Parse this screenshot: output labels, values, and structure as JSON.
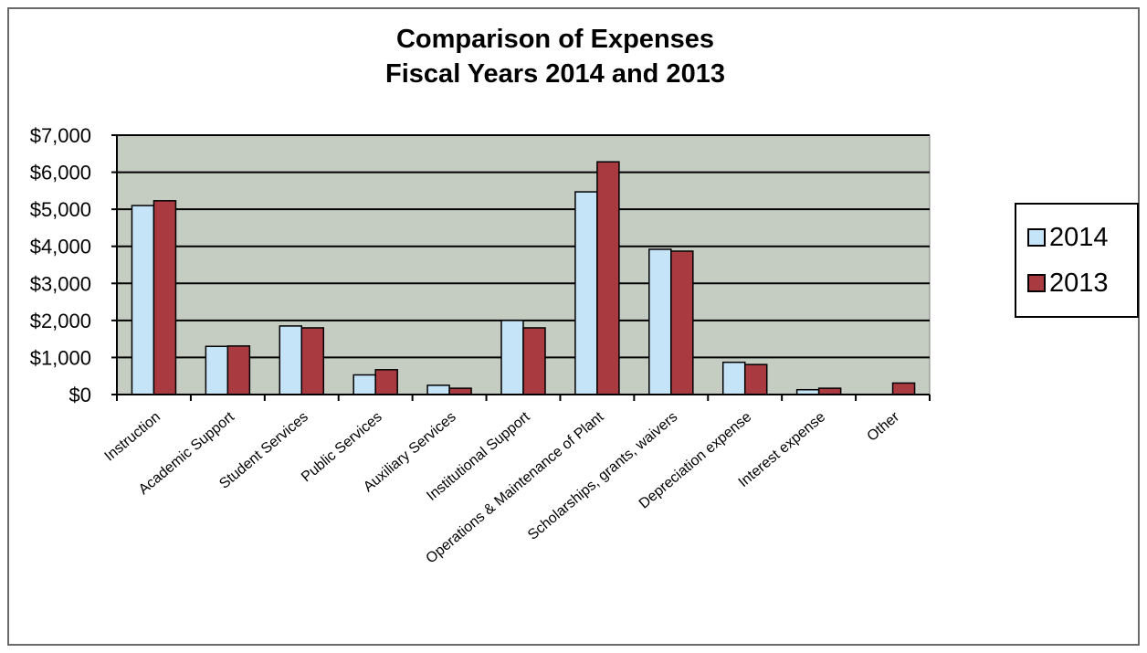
{
  "chart_data": {
    "type": "bar",
    "title": [
      "Comparison of Expenses",
      "Fiscal Years 2014 and 2013"
    ],
    "xlabel": "",
    "ylabel": "",
    "categories": [
      "Instruction",
      "Academic Support",
      "Student Services",
      "Public Services",
      "Auxiliary Services",
      "Institutional Support",
      "Operations & Maintenance of Plant",
      "Scholarships, grants, waivers",
      "Depreciation expense",
      "Interest expense",
      "Other"
    ],
    "series": [
      {
        "name": "2014",
        "color": "#c6e4f8",
        "values": [
          5100,
          1300,
          1850,
          530,
          250,
          2000,
          5470,
          3920,
          870,
          130,
          0
        ]
      },
      {
        "name": "2013",
        "color": "#a83a40",
        "values": [
          5230,
          1310,
          1800,
          670,
          170,
          1800,
          6280,
          3870,
          810,
          170,
          310
        ]
      }
    ],
    "ylim": [
      0,
      7000
    ],
    "yticks": [
      0,
      1000,
      2000,
      3000,
      4000,
      5000,
      6000,
      7000
    ],
    "ytick_labels": [
      "$0",
      "$1,000",
      "$2,000",
      "$3,000",
      "$4,000",
      "$5,000",
      "$6,000",
      "$7,000"
    ],
    "grid": true,
    "plot_background": "#c5cdc3",
    "legend_position": "right"
  }
}
